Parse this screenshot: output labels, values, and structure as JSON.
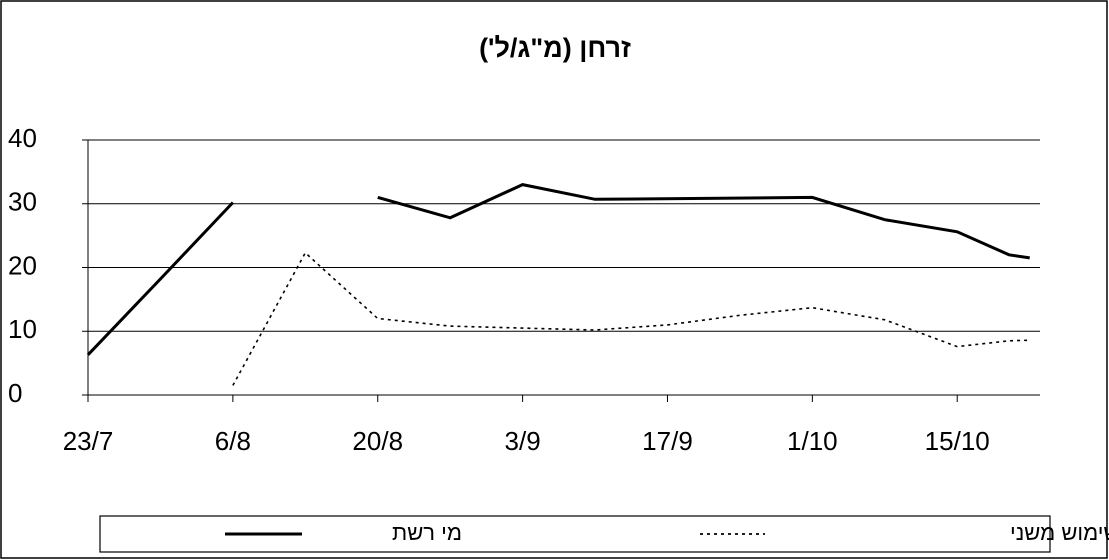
{
  "chart_data": {
    "type": "line",
    "title": "זרחן (מ\"ג/ל')",
    "xlim": [
      "23/7",
      "23/10"
    ],
    "xticks": [
      "23/7",
      "6/8",
      "20/8",
      "3/9",
      "17/9",
      "1/10",
      "15/10"
    ],
    "ylim": [
      0,
      40
    ],
    "yticks": [
      0,
      10,
      20,
      30,
      40
    ],
    "grid": true,
    "legend": "bottom",
    "series": [
      {
        "name": "מי רשת",
        "color": "#000000",
        "dash": "solid",
        "x": [
          "23/7",
          "30/7",
          "6/8",
          "13/8",
          "20/8",
          "27/8",
          "3/9",
          "10/9",
          "1/10",
          "8/10",
          "15/10",
          "20/10",
          "22/10"
        ],
        "values": [
          6.3,
          18.2,
          30.2,
          null,
          31,
          27.8,
          33,
          30.7,
          31,
          27.5,
          25.6,
          22,
          21.5
        ]
      },
      {
        "name": "שימוש משני",
        "color": "#000000",
        "dash": "dotted",
        "x": [
          "6/8",
          "13/8",
          "20/8",
          "27/8",
          "3/9",
          "10/9",
          "17/9",
          "24/9",
          "1/10",
          "8/10",
          "15/10",
          "20/10",
          "22/10"
        ],
        "values": [
          1.5,
          22.3,
          12,
          10.8,
          10.5,
          10.2,
          11,
          12.5,
          13.7,
          11.8,
          7.6,
          8.5,
          8.6
        ]
      }
    ]
  }
}
